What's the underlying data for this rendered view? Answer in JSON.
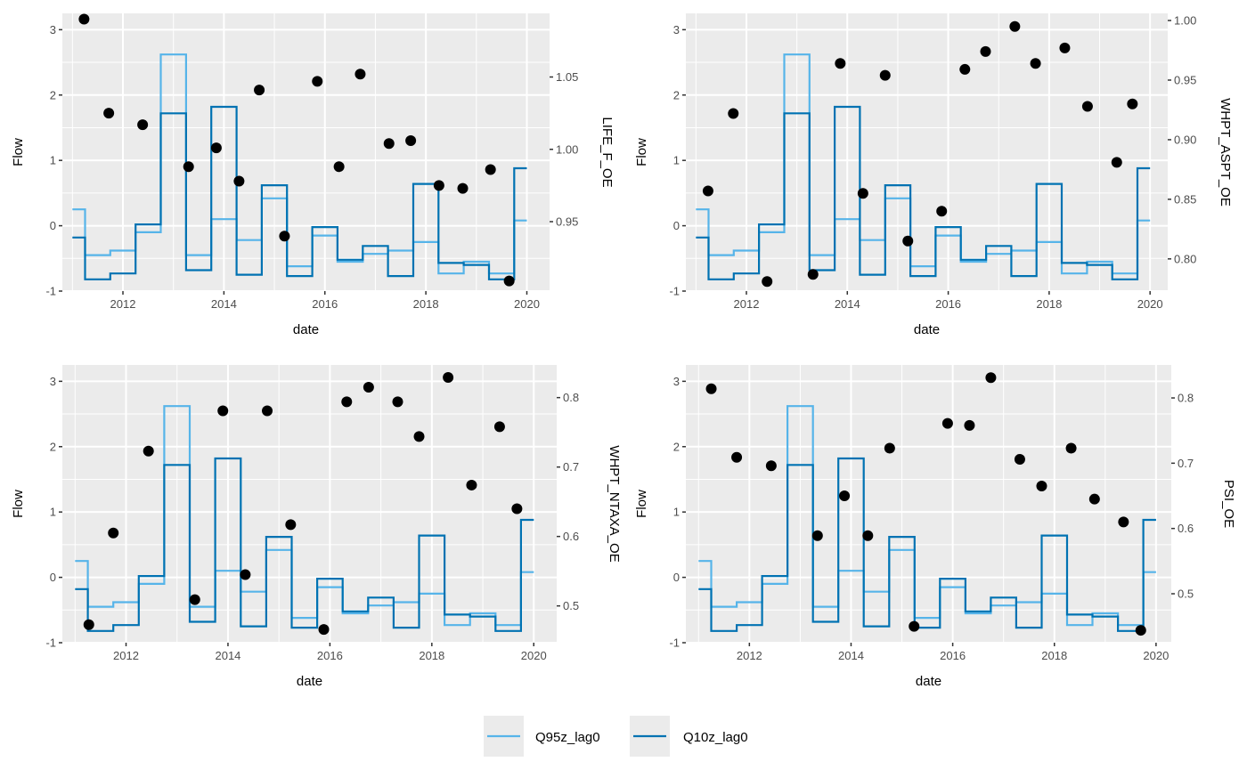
{
  "chart_data": [
    {
      "type": "line+scatter",
      "panel": "top-left",
      "xlabel": "date",
      "ylabel": "Flow",
      "ylabel_right": "LIFE_F_OE",
      "xlim": [
        2010.8,
        2020.45
      ],
      "ylim": [
        -1.0,
        3.25
      ],
      "x_ticks": [
        2012,
        2014,
        2016,
        2018,
        2020
      ],
      "y_ticks": [
        -1,
        0,
        1,
        2,
        3
      ],
      "y2_ticks": [
        0.95,
        1.0,
        1.05
      ],
      "y2_tick_labels": [
        "0.95",
        "1.00",
        "1.05"
      ],
      "y2lim": [
        0.902,
        1.094
      ],
      "points": [
        [
          2011.23,
          1.09
        ],
        [
          2011.72,
          1.025
        ],
        [
          2012.39,
          1.017
        ],
        [
          2013.3,
          0.988
        ],
        [
          2013.85,
          1.001
        ],
        [
          2014.3,
          0.978
        ],
        [
          2014.7,
          1.041
        ],
        [
          2015.2,
          0.94
        ],
        [
          2015.85,
          1.047
        ],
        [
          2016.28,
          0.988
        ],
        [
          2016.7,
          1.052
        ],
        [
          2017.27,
          1.004
        ],
        [
          2017.7,
          1.006
        ],
        [
          2018.26,
          0.975
        ],
        [
          2018.73,
          0.973
        ],
        [
          2019.28,
          0.986
        ],
        [
          2019.65,
          0.909
        ]
      ]
    },
    {
      "type": "line+scatter",
      "panel": "top-right",
      "xlabel": "date",
      "ylabel": "Flow",
      "ylabel_right": "WHPT_ASPT_OE",
      "xlim": [
        2010.8,
        2020.35
      ],
      "ylim": [
        -1.0,
        3.25
      ],
      "x_ticks": [
        2012,
        2014,
        2016,
        2018,
        2020
      ],
      "y_ticks": [
        -1,
        0,
        1,
        2,
        3
      ],
      "y2_ticks": [
        0.8,
        0.85,
        0.9,
        0.95,
        1.0
      ],
      "y2_tick_labels": [
        "0.80",
        "0.85",
        "0.90",
        "0.95",
        "1.00"
      ],
      "y2lim": [
        0.773,
        1.006
      ],
      "points": [
        [
          2011.24,
          0.857
        ],
        [
          2011.74,
          0.922
        ],
        [
          2012.41,
          0.781
        ],
        [
          2013.32,
          0.787
        ],
        [
          2013.86,
          0.964
        ],
        [
          2014.31,
          0.855
        ],
        [
          2014.75,
          0.954
        ],
        [
          2015.2,
          0.815
        ],
        [
          2015.87,
          0.84
        ],
        [
          2016.33,
          0.959
        ],
        [
          2016.74,
          0.974
        ],
        [
          2017.32,
          0.995
        ],
        [
          2017.73,
          0.964
        ],
        [
          2018.31,
          0.977
        ],
        [
          2018.76,
          0.928
        ],
        [
          2019.34,
          0.881
        ],
        [
          2019.65,
          0.93
        ]
      ]
    },
    {
      "type": "line+scatter",
      "panel": "bottom-left",
      "xlabel": "date",
      "ylabel": "Flow",
      "ylabel_right": "WHPT_NTAXA_OE",
      "xlim": [
        2010.75,
        2020.45
      ],
      "ylim": [
        -1.0,
        3.25
      ],
      "x_ticks": [
        2012,
        2014,
        2016,
        2018,
        2020
      ],
      "y_ticks": [
        -1,
        0,
        1,
        2,
        3
      ],
      "y2_ticks": [
        0.5,
        0.6,
        0.7,
        0.8
      ],
      "y2_tick_labels": [
        "0.5",
        "0.6",
        "0.7",
        "0.8"
      ],
      "y2lim": [
        0.447,
        0.847
      ],
      "points": [
        [
          2011.27,
          0.473
        ],
        [
          2011.75,
          0.605
        ],
        [
          2012.44,
          0.723
        ],
        [
          2013.35,
          0.509
        ],
        [
          2013.9,
          0.781
        ],
        [
          2014.34,
          0.545
        ],
        [
          2014.77,
          0.781
        ],
        [
          2015.23,
          0.617
        ],
        [
          2015.88,
          0.466
        ],
        [
          2016.33,
          0.794
        ],
        [
          2016.76,
          0.815
        ],
        [
          2017.33,
          0.794
        ],
        [
          2017.75,
          0.744
        ],
        [
          2018.32,
          0.829
        ],
        [
          2018.78,
          0.674
        ],
        [
          2019.33,
          0.758
        ],
        [
          2019.67,
          0.64
        ]
      ]
    },
    {
      "type": "line+scatter",
      "panel": "bottom-right",
      "xlabel": "date",
      "ylabel": "Flow",
      "ylabel_right": "PSI_OE",
      "xlim": [
        2010.75,
        2020.3
      ],
      "ylim": [
        -1.0,
        3.25
      ],
      "x_ticks": [
        2012,
        2014,
        2016,
        2018,
        2020
      ],
      "y_ticks": [
        -1,
        0,
        1,
        2,
        3
      ],
      "y2_ticks": [
        0.5,
        0.6,
        0.7,
        0.8
      ],
      "y2_tick_labels": [
        "0.5",
        "0.6",
        "0.7",
        "0.8"
      ],
      "y2lim": [
        0.425,
        0.8505
      ],
      "points": [
        [
          2011.25,
          0.814
        ],
        [
          2011.75,
          0.709
        ],
        [
          2012.43,
          0.696
        ],
        [
          2013.34,
          0.589
        ],
        [
          2013.87,
          0.65
        ],
        [
          2014.33,
          0.589
        ],
        [
          2014.76,
          0.723
        ],
        [
          2015.24,
          0.45
        ],
        [
          2015.9,
          0.761
        ],
        [
          2016.33,
          0.758
        ],
        [
          2016.75,
          0.831
        ],
        [
          2017.32,
          0.706
        ],
        [
          2017.75,
          0.665
        ],
        [
          2018.33,
          0.723
        ],
        [
          2018.79,
          0.645
        ],
        [
          2019.36,
          0.61
        ],
        [
          2019.7,
          0.444
        ]
      ]
    }
  ],
  "flow_series": {
    "step_x": [
      2011.0,
      2011.25,
      2011.75,
      2012.25,
      2012.75,
      2013.25,
      2013.75,
      2014.25,
      2014.75,
      2015.25,
      2015.75,
      2016.25,
      2016.75,
      2017.25,
      2017.75,
      2018.25,
      2018.75,
      2019.25,
      2019.75,
      2020.0
    ],
    "series": [
      {
        "name": "Q95z_lag0",
        "color": "#56B4E9",
        "values": [
          0.25,
          -0.45,
          -0.38,
          -0.1,
          2.62,
          -0.45,
          0.1,
          -0.22,
          0.42,
          -0.62,
          -0.15,
          -0.55,
          -0.43,
          -0.38,
          -0.25,
          -0.73,
          -0.55,
          -0.73,
          0.08
        ]
      },
      {
        "name": "Q10z_lag0",
        "color": "#0072B2",
        "values": [
          -0.18,
          -0.82,
          -0.73,
          0.02,
          1.72,
          -0.68,
          1.82,
          -0.75,
          0.62,
          -0.77,
          -0.02,
          -0.52,
          -0.31,
          -0.77,
          0.64,
          -0.57,
          -0.6,
          -0.82,
          0.88
        ]
      }
    ]
  },
  "legend": {
    "position": "bottom",
    "items": [
      {
        "label": "Q95z_lag0",
        "color": "#56B4E9"
      },
      {
        "label": "Q10z_lag0",
        "color": "#0072B2"
      }
    ]
  },
  "colors": {
    "panel_bg": "#EBEBEB",
    "grid": "#FFFFFF",
    "point": "#000000"
  }
}
